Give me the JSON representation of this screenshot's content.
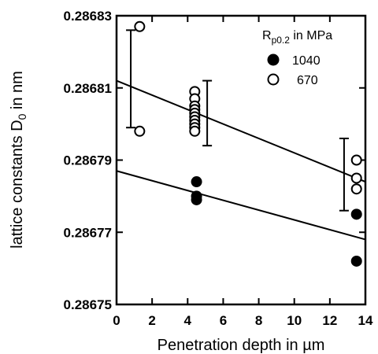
{
  "chart_data": {
    "type": "scatter",
    "title": "",
    "xlabel": "Penetration depth in µm",
    "ylabel_main": "lattice constants D",
    "ylabel_sub": "0",
    "ylabel_unit": " in nm",
    "xlim": [
      0,
      14
    ],
    "ylim": [
      0.28675,
      0.28683
    ],
    "x_ticks": [
      0,
      2,
      4,
      6,
      8,
      10,
      12,
      14
    ],
    "y_ticks": [
      0.28675,
      0.28677,
      0.28679,
      0.28681,
      0.28683
    ],
    "y_tick_labels": [
      "0.28675",
      "0.28677",
      "0.28679",
      "0.28681",
      "0.28683"
    ],
    "grid": false,
    "legend": {
      "title_main": "R",
      "title_sub": "p0.2",
      "title_unit": " in MPa",
      "placement": "top-right",
      "entries": [
        "1040",
        "670"
      ]
    },
    "series": [
      {
        "name": "1040",
        "marker": "filled-circle",
        "points": [
          [
            4.5,
            0.286784
          ],
          [
            4.5,
            0.28678
          ],
          [
            4.5,
            0.286779
          ],
          [
            13.5,
            0.286775
          ],
          [
            13.5,
            0.286762
          ]
        ],
        "fit_line": [
          [
            0,
            0.286787
          ],
          [
            14,
            0.286768
          ]
        ]
      },
      {
        "name": "670",
        "marker": "open-circle",
        "points": [
          [
            1.3,
            0.286827
          ],
          [
            1.3,
            0.286798
          ],
          [
            4.4,
            0.286809
          ],
          [
            4.4,
            0.286807
          ],
          [
            4.4,
            0.286805
          ],
          [
            4.4,
            0.286804
          ],
          [
            4.4,
            0.286803
          ],
          [
            4.4,
            0.286802
          ],
          [
            4.4,
            0.286801
          ],
          [
            4.4,
            0.2868
          ],
          [
            4.4,
            0.286799
          ],
          [
            4.4,
            0.286798
          ],
          [
            13.5,
            0.28679
          ],
          [
            13.5,
            0.286785
          ],
          [
            13.5,
            0.286782
          ]
        ],
        "fit_line": [
          [
            0,
            0.286812
          ],
          [
            14,
            0.286784
          ]
        ]
      }
    ],
    "error_bars": [
      {
        "x": 0.8,
        "low": 0.286799,
        "high": 0.286826
      },
      {
        "x": 5.1,
        "low": 0.286794,
        "high": 0.286812
      },
      {
        "x": 12.8,
        "low": 0.286776,
        "high": 0.286796
      }
    ]
  }
}
